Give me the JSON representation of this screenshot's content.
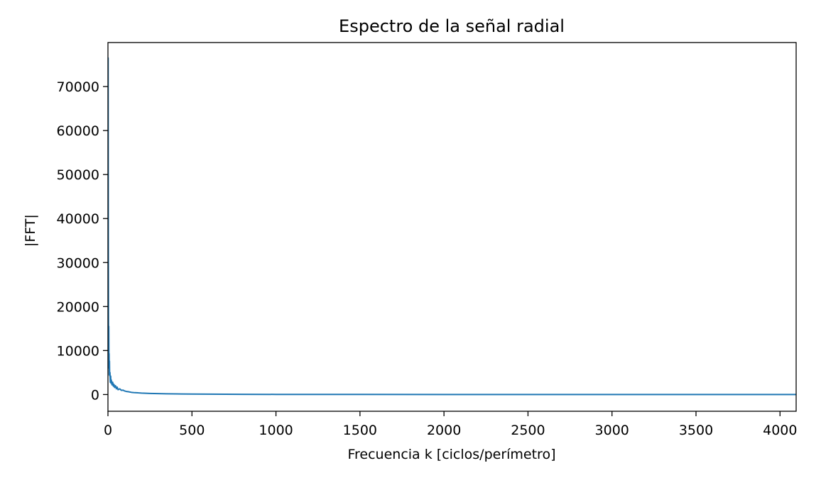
{
  "chart_data": {
    "type": "line",
    "title": "Espectro de la señal radial",
    "xlabel": "Frecuencia k [ciclos/perímetro]",
    "ylabel": "|FFT|",
    "xlim": [
      0,
      4096
    ],
    "ylim": [
      -3800,
      80000
    ],
    "xticks": [
      0,
      500,
      1000,
      1500,
      2000,
      2500,
      3000,
      3500,
      4000
    ],
    "yticks": [
      0,
      10000,
      20000,
      30000,
      40000,
      50000,
      60000,
      70000
    ],
    "xtick_labels": [
      "0",
      "500",
      "1000",
      "1500",
      "2000",
      "2500",
      "3000",
      "3500",
      "4000"
    ],
    "ytick_labels": [
      "0",
      "10000",
      "20000",
      "30000",
      "40000",
      "50000",
      "60000",
      "70000"
    ],
    "grid": false,
    "legend": "none",
    "series": [
      {
        "color": "#1f77b4",
        "x": [
          0,
          1,
          2,
          3,
          4,
          5,
          6,
          7,
          8,
          9,
          10,
          12,
          14,
          16,
          18,
          20,
          24,
          28,
          32,
          36,
          40,
          45,
          50,
          55,
          60,
          70,
          80,
          90,
          100,
          110,
          120,
          140,
          160,
          180,
          200,
          250,
          300,
          350,
          400,
          500,
          600,
          700,
          800,
          1000,
          1500,
          2000,
          2500,
          3000,
          3500,
          4096
        ],
        "y": [
          52000,
          76500,
          36000,
          18000,
          9000,
          15500,
          6000,
          9300,
          4500,
          7600,
          4300,
          5000,
          2800,
          4200,
          2600,
          3300,
          2200,
          2800,
          1900,
          2300,
          1600,
          2000,
          1300,
          1700,
          1100,
          1300,
          950,
          1000,
          800,
          700,
          650,
          500,
          420,
          380,
          320,
          250,
          200,
          170,
          140,
          100,
          80,
          60,
          50,
          35,
          20,
          15,
          10,
          8,
          6,
          5
        ]
      }
    ]
  }
}
